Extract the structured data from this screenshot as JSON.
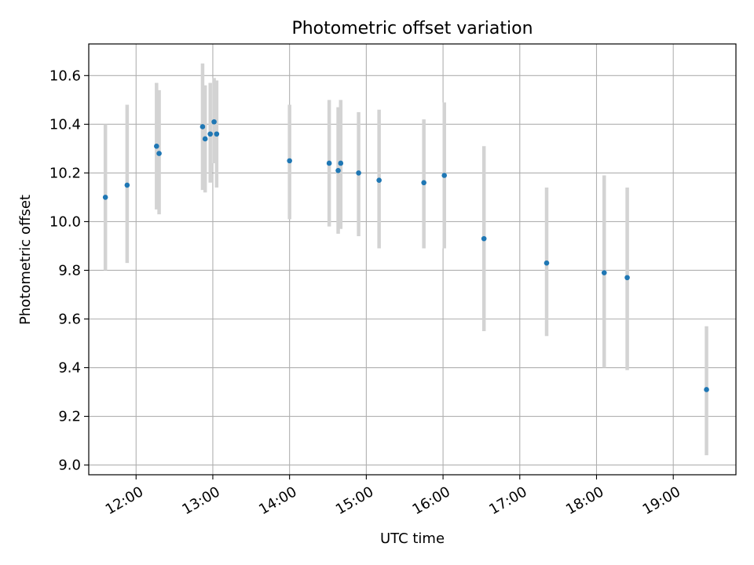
{
  "chart_data": {
    "type": "scatter",
    "title": "Photometric offset variation",
    "xlabel": "UTC time",
    "ylabel": "Photometric offset",
    "xlim": [
      "11:23",
      "19:49"
    ],
    "ylim": [
      8.96,
      10.73
    ],
    "x_ticks": [
      "12:00",
      "13:00",
      "14:00",
      "15:00",
      "16:00",
      "17:00",
      "18:00",
      "19:00"
    ],
    "y_ticks": [
      9.0,
      9.2,
      9.4,
      9.6,
      9.8,
      10.0,
      10.2,
      10.4,
      10.6
    ],
    "grid": true,
    "legend": "none",
    "colors": {
      "marker": "#1f77b4",
      "errorbar": "#d3d3d3",
      "grid": "#b0b0b0"
    },
    "points": [
      {
        "x": "11:36",
        "y": 10.1,
        "ylow": 9.8,
        "yhigh": 10.4
      },
      {
        "x": "11:53",
        "y": 10.15,
        "ylow": 9.83,
        "yhigh": 10.48
      },
      {
        "x": "12:16",
        "y": 10.31,
        "ylow": 10.05,
        "yhigh": 10.57
      },
      {
        "x": "12:18",
        "y": 10.28,
        "ylow": 10.03,
        "yhigh": 10.54
      },
      {
        "x": "12:52",
        "y": 10.39,
        "ylow": 10.13,
        "yhigh": 10.65
      },
      {
        "x": "12:54",
        "y": 10.34,
        "ylow": 10.12,
        "yhigh": 10.56
      },
      {
        "x": "12:58",
        "y": 10.36,
        "ylow": 10.16,
        "yhigh": 10.57
      },
      {
        "x": "13:01",
        "y": 10.41,
        "ylow": 10.24,
        "yhigh": 10.59
      },
      {
        "x": "13:03",
        "y": 10.36,
        "ylow": 10.14,
        "yhigh": 10.58
      },
      {
        "x": "14:00",
        "y": 10.25,
        "ylow": 10.01,
        "yhigh": 10.48
      },
      {
        "x": "14:31",
        "y": 10.24,
        "ylow": 9.98,
        "yhigh": 10.5
      },
      {
        "x": "14:38",
        "y": 10.21,
        "ylow": 9.95,
        "yhigh": 10.47
      },
      {
        "x": "14:40",
        "y": 10.24,
        "ylow": 9.97,
        "yhigh": 10.5
      },
      {
        "x": "14:54",
        "y": 10.2,
        "ylow": 9.94,
        "yhigh": 10.45
      },
      {
        "x": "15:10",
        "y": 10.17,
        "ylow": 9.89,
        "yhigh": 10.46
      },
      {
        "x": "15:45",
        "y": 10.16,
        "ylow": 9.89,
        "yhigh": 10.42
      },
      {
        "x": "16:01",
        "y": 10.19,
        "ylow": 9.89,
        "yhigh": 10.49
      },
      {
        "x": "16:32",
        "y": 9.93,
        "ylow": 9.55,
        "yhigh": 10.31
      },
      {
        "x": "17:21",
        "y": 9.83,
        "ylow": 9.53,
        "yhigh": 10.14
      },
      {
        "x": "18:06",
        "y": 9.79,
        "ylow": 9.4,
        "yhigh": 10.19
      },
      {
        "x": "18:24",
        "y": 9.77,
        "ylow": 9.39,
        "yhigh": 10.14
      },
      {
        "x": "19:26",
        "y": 9.31,
        "ylow": 9.04,
        "yhigh": 9.57
      }
    ]
  }
}
